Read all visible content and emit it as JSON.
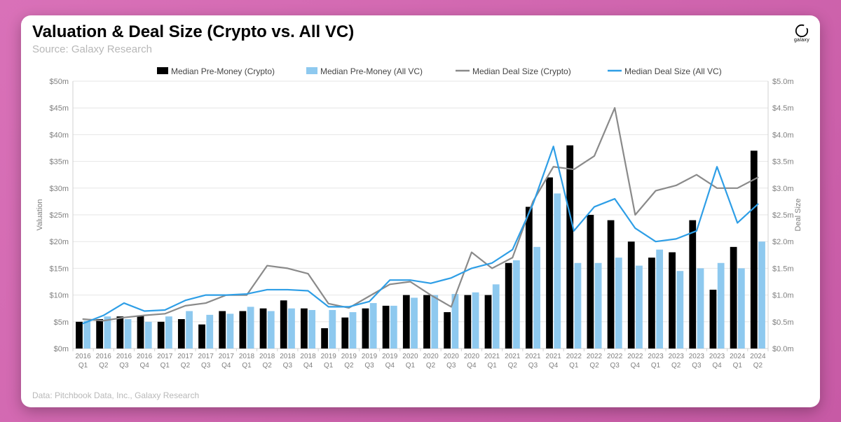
{
  "page": {
    "background_gradient": [
      "#d971b8",
      "#c75aa5"
    ],
    "card_bg": "#ffffff"
  },
  "header": {
    "title": "Valuation & Deal Size (Crypto vs. All VC)",
    "subtitle": "Source: Galaxy Research",
    "logo_text": "galaxy"
  },
  "footer": {
    "text": "Data: Pitchbook Data, Inc., Galaxy Research"
  },
  "chart": {
    "type": "bar+line-dual-axis",
    "plot_bg": "#ffffff",
    "grid_color": "#e6e6e6",
    "axis_line_color": "#d0d0d0",
    "tick_font_size": 11,
    "xaxis": {
      "categories_year": [
        "2016",
        "2016",
        "2016",
        "2016",
        "2017",
        "2017",
        "2017",
        "2017",
        "2018",
        "2018",
        "2018",
        "2018",
        "2019",
        "2019",
        "2019",
        "2019",
        "2020",
        "2020",
        "2020",
        "2020",
        "2021",
        "2021",
        "2021",
        "2021",
        "2022",
        "2022",
        "2022",
        "2022",
        "2023",
        "2023",
        "2023",
        "2023",
        "2024",
        "2024"
      ],
      "categories_q": [
        "Q1",
        "Q2",
        "Q3",
        "Q4",
        "Q1",
        "Q2",
        "Q3",
        "Q4",
        "Q1",
        "Q2",
        "Q3",
        "Q4",
        "Q1",
        "Q2",
        "Q3",
        "Q4",
        "Q1",
        "Q2",
        "Q3",
        "Q4",
        "Q1",
        "Q2",
        "Q3",
        "Q4",
        "Q1",
        "Q2",
        "Q3",
        "Q4",
        "Q1",
        "Q2",
        "Q3",
        "Q4",
        "Q1",
        "Q2"
      ]
    },
    "yaxis_left": {
      "title": "Valuation",
      "min": 0,
      "max": 50,
      "step": 5,
      "tick_labels": [
        "$0m",
        "$5m",
        "$10m",
        "$15m",
        "$20m",
        "$25m",
        "$30m",
        "$35m",
        "$40m",
        "$45m",
        "$50m"
      ]
    },
    "yaxis_right": {
      "title": "Deal Size",
      "min": 0,
      "max": 5.0,
      "step": 0.5,
      "tick_labels": [
        "$0.0m",
        "$0.5m",
        "$1.0m",
        "$1.5m",
        "$2.0m",
        "$2.5m",
        "$3.0m",
        "$3.5m",
        "$4.0m",
        "$4.5m",
        "$5.0m"
      ]
    },
    "legend": {
      "items": [
        {
          "key": "bar_crypto",
          "label": "Median Pre-Money (Crypto)",
          "color": "#000000",
          "type": "bar"
        },
        {
          "key": "bar_allvc",
          "label": "Median Pre-Money (All VC)",
          "color": "#8ec9ef",
          "type": "bar"
        },
        {
          "key": "line_crypto",
          "label": "Median Deal Size (Crypto)",
          "color": "#8a8a8a",
          "type": "line"
        },
        {
          "key": "line_allvc",
          "label": "Median Deal Size (All VC)",
          "color": "#2e9ee6",
          "type": "line"
        }
      ],
      "font_size": 12
    },
    "series": {
      "bar_crypto": {
        "axis": "left",
        "color": "#000000",
        "bar_index": 0,
        "values": [
          5.0,
          5.5,
          6.0,
          6.2,
          5.0,
          5.5,
          4.5,
          7.0,
          7.0,
          7.5,
          9.0,
          7.5,
          3.8,
          5.8,
          7.5,
          8.0,
          10.0,
          10.0,
          6.8,
          10.0,
          10.0,
          16.0,
          26.5,
          32.0,
          38.0,
          25.0,
          24.0,
          20.0,
          17.0,
          18.0,
          24.0,
          11.0,
          19.0,
          37.0
        ]
      },
      "bar_allvc": {
        "axis": "left",
        "color": "#8ec9ef",
        "bar_index": 1,
        "values": [
          5.2,
          6.0,
          5.5,
          5.0,
          6.0,
          7.0,
          6.3,
          6.5,
          7.8,
          7.0,
          7.5,
          7.2,
          7.2,
          6.8,
          8.5,
          8.0,
          9.5,
          10.0,
          10.2,
          10.5,
          12.0,
          16.5,
          19.0,
          29.0,
          16.0,
          16.0,
          17.0,
          15.5,
          18.5,
          14.5,
          15.0,
          16.0,
          15.0,
          20.0
        ]
      },
      "line_crypto": {
        "axis": "right",
        "color": "#8a8a8a",
        "width": 2.2,
        "values": [
          0.55,
          0.52,
          0.58,
          0.62,
          0.65,
          0.8,
          0.85,
          1.0,
          1.0,
          1.55,
          1.5,
          1.4,
          0.84,
          0.76,
          0.98,
          1.2,
          1.25,
          1.0,
          0.78,
          1.8,
          1.5,
          1.7,
          2.75,
          3.4,
          3.35,
          3.6,
          4.5,
          2.5,
          2.95,
          3.05,
          3.25,
          3.0,
          3.0,
          3.2
        ]
      },
      "line_allvc": {
        "axis": "right",
        "color": "#2e9ee6",
        "width": 2.2,
        "values": [
          0.47,
          0.62,
          0.85,
          0.7,
          0.72,
          0.9,
          1.0,
          1.0,
          1.02,
          1.1,
          1.1,
          1.08,
          0.78,
          0.78,
          0.88,
          1.28,
          1.28,
          1.22,
          1.32,
          1.5,
          1.6,
          1.85,
          2.7,
          3.78,
          2.2,
          2.65,
          2.8,
          2.25,
          2.0,
          2.05,
          2.2,
          3.4,
          2.35,
          2.7
        ]
      }
    },
    "bar_group_gap": 0.28,
    "bar_inner_gap": 0.05
  }
}
